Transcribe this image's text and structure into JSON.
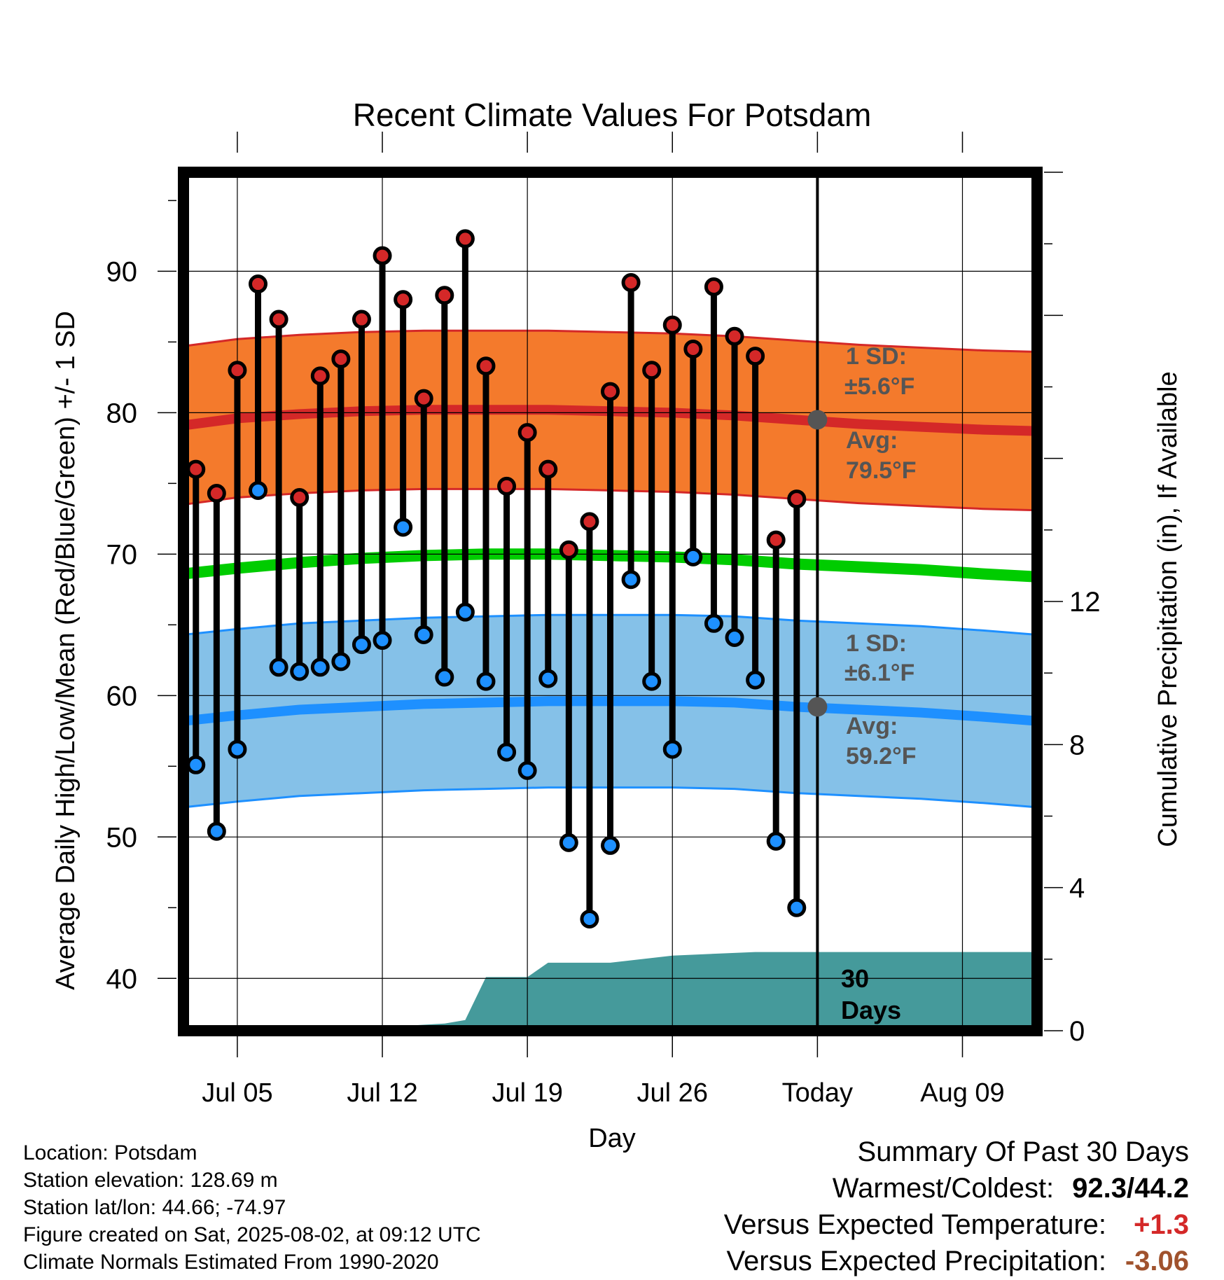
{
  "title": "Recent Climate Values For Potsdam",
  "xlabel": "Day",
  "ylabel_left": "Average Daily High/Low/Mean (Red/Blue/Green) +/- 1 SD",
  "ylabel_right": "Cumulative Precipitation (in), If Available",
  "annotations": {
    "high_sd_line1": "1 SD:",
    "high_sd_line2": "±5.6°F",
    "high_avg_line1": "Avg:",
    "high_avg_line2": "79.5°F",
    "low_sd_line1": "1 SD:",
    "low_sd_line2": "±6.1°F",
    "low_avg_line1": "Avg:",
    "low_avg_line2": "59.2°F",
    "days_line1": "30",
    "days_line2": "Days"
  },
  "info": {
    "location": "Location: Potsdam",
    "elevation": "Station elevation: 128.69 m",
    "latlon": "Station lat/lon: 44.66; -74.97",
    "created": "Figure created on Sat, 2025-08-02, at 09:12 UTC",
    "normals": "Climate Normals Estimated From 1990-2020"
  },
  "summary": {
    "heading": "Summary Of Past 30 Days",
    "warm_cold_label": "Warmest/Coldest:",
    "warm_cold_value": "92.3/44.2",
    "temp_label": "Versus Expected Temperature:",
    "temp_value": "+1.3",
    "precip_label": "Versus Expected Precipitation:",
    "precip_value": "-3.06"
  },
  "colors": {
    "high_band": "#f47a2c",
    "high_line": "#d42828",
    "low_band": "#85c1e8",
    "low_line": "#1e90ff",
    "mean_line": "#00cc00",
    "precip": "#459a9b",
    "high_dot": "#d42828",
    "low_dot": "#1e90ff",
    "annotation_text": "#555555",
    "temp_positive": "#d42828",
    "precip_negative": "#a0522d"
  },
  "chart_data": {
    "type": "line",
    "x_ticks": [
      {
        "day": 5,
        "label": "Jul 05"
      },
      {
        "day": 12,
        "label": "Jul 12"
      },
      {
        "day": 19,
        "label": "Jul 19"
      },
      {
        "day": 26,
        "label": "Jul 26"
      },
      {
        "day": 33,
        "label": "Today"
      },
      {
        "day": 40,
        "label": "Aug 09"
      }
    ],
    "xlim": [
      2.4,
      43.6
    ],
    "ylim": [
      36.3,
      97
    ],
    "y_ticks": [
      40,
      50,
      60,
      70,
      80,
      90
    ],
    "y2lim": [
      0,
      24
    ],
    "y2_ticks": [
      0,
      4,
      8,
      12
    ],
    "days": [
      3,
      4,
      5,
      6,
      7,
      8,
      9,
      10,
      11,
      12,
      13,
      14,
      15,
      16,
      17,
      18,
      19,
      20,
      21,
      22,
      23,
      24,
      25,
      26,
      27,
      28,
      29,
      30,
      31,
      32
    ],
    "highs": [
      76.0,
      74.3,
      83.0,
      89.1,
      86.6,
      74.0,
      82.6,
      83.8,
      86.6,
      91.1,
      88.0,
      81.0,
      88.3,
      92.3,
      83.3,
      74.8,
      78.6,
      76.0,
      70.3,
      72.3,
      81.5,
      89.2,
      83.0,
      86.2,
      84.5,
      88.9,
      85.4,
      84.0,
      71.0,
      73.9
    ],
    "lows": [
      55.1,
      50.4,
      56.2,
      74.5,
      62.0,
      61.7,
      62.0,
      62.4,
      63.6,
      63.9,
      71.9,
      64.3,
      61.3,
      65.9,
      61.0,
      56.0,
      54.7,
      61.2,
      49.6,
      44.2,
      49.4,
      68.2,
      61.0,
      56.2,
      69.8,
      65.1,
      64.1,
      61.1,
      49.7,
      45.0
    ],
    "normal_days": [
      2.4,
      5,
      8,
      11,
      14,
      17,
      20,
      23,
      26,
      29,
      32,
      35,
      38,
      41,
      43.6
    ],
    "normal_high": [
      79.1,
      79.6,
      79.9,
      80.1,
      80.2,
      80.2,
      80.2,
      80.1,
      80.0,
      79.8,
      79.5,
      79.2,
      79.0,
      78.8,
      78.7
    ],
    "normal_low": [
      58.2,
      58.6,
      59.0,
      59.2,
      59.4,
      59.5,
      59.6,
      59.6,
      59.6,
      59.5,
      59.2,
      59.0,
      58.8,
      58.5,
      58.2
    ],
    "normal_mean": [
      68.6,
      69.0,
      69.4,
      69.7,
      69.9,
      70.0,
      70.0,
      69.9,
      69.8,
      69.6,
      69.3,
      69.1,
      68.9,
      68.6,
      68.4
    ],
    "high_sd": 5.6,
    "low_sd": 6.1,
    "today_day": 33,
    "today_high_avg": 79.5,
    "today_low_avg": 59.2,
    "precip_days": [
      2.4,
      3,
      6,
      9,
      12,
      15,
      16,
      17,
      18,
      19,
      20,
      21,
      23,
      26,
      30,
      33,
      43.6
    ],
    "precip_cum": [
      0.0,
      0.0,
      0.1,
      0.1,
      0.1,
      0.2,
      0.3,
      1.5,
      1.5,
      1.5,
      1.9,
      1.9,
      1.9,
      2.1,
      2.2,
      2.2,
      2.2
    ]
  }
}
